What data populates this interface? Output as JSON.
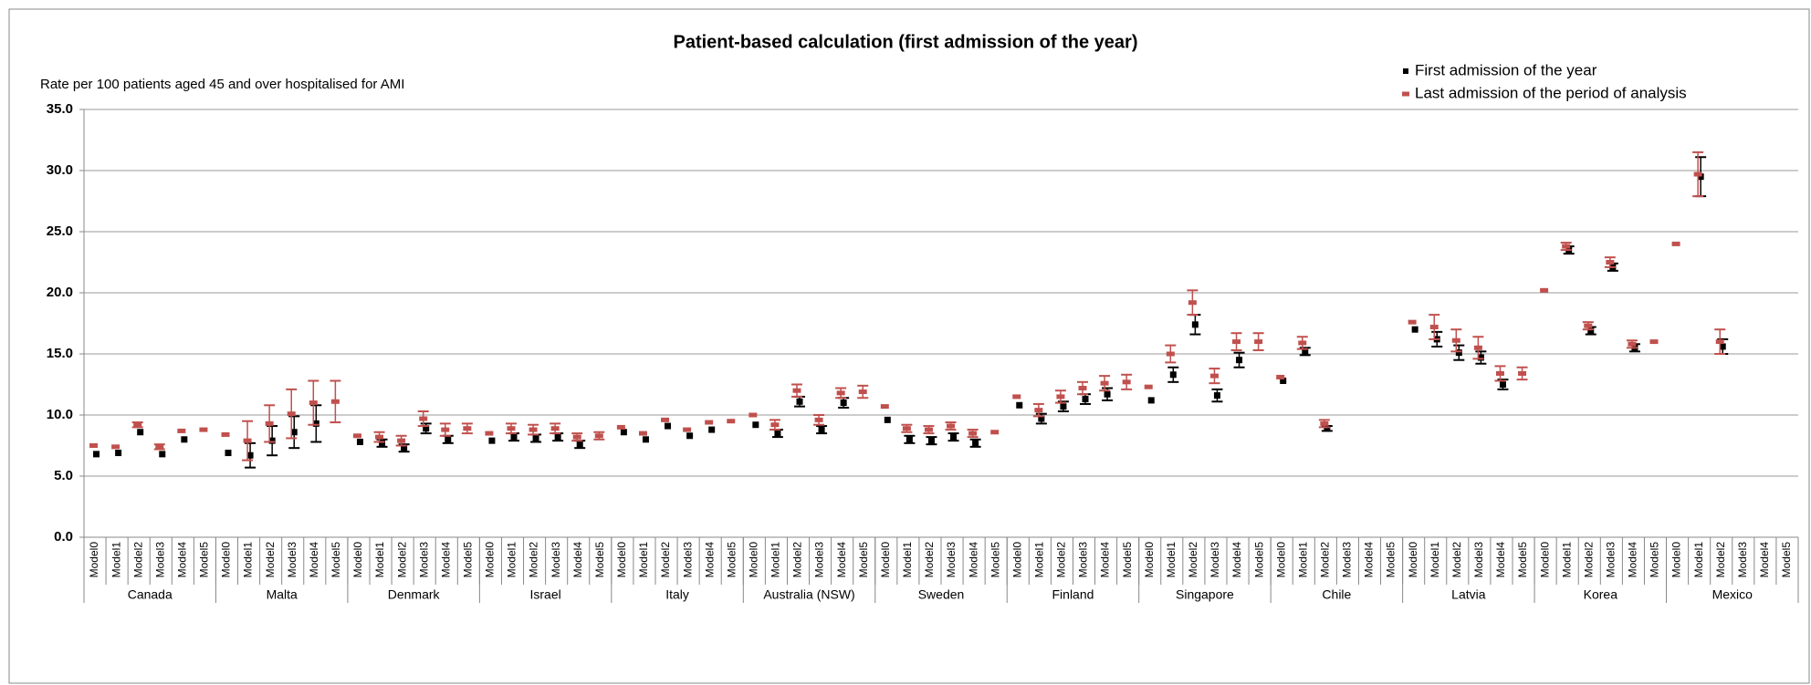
{
  "chart_data": {
    "type": "errorbar",
    "title": "Patient-based calculation (first admission of the year)",
    "ylabel": "Rate per 100 patients aged 45 and over hospitalised for AMI",
    "groups": [
      "Canada",
      "Malta",
      "Denmark",
      "Israel",
      "Italy",
      "Australia (NSW)",
      "Sweden",
      "Finland",
      "Singapore",
      "Chile",
      "Latvia",
      "Korea",
      "Mexico"
    ],
    "categories": [
      "Model0",
      "Model1",
      "Model2",
      "Model3",
      "Model4",
      "Model5",
      "Model0",
      "Model1",
      "Model2",
      "Model3",
      "Model4",
      "Model5",
      "Model0",
      "Model1",
      "Model2",
      "Model3",
      "Model4",
      "Model5",
      "Model0",
      "Model1",
      "Model2",
      "Model3",
      "Model4",
      "Model5",
      "Model0",
      "Model1",
      "Model2",
      "Model3",
      "Model4",
      "Model5",
      "Model0",
      "Model1",
      "Model2",
      "Model3",
      "Model4",
      "Model5",
      "Model0",
      "Model1",
      "Model2",
      "Model3",
      "Model4",
      "Model5",
      "Model0",
      "Model1",
      "Model2",
      "Model3",
      "Model4",
      "Model5",
      "Model0",
      "Model1",
      "Model2",
      "Model3",
      "Model4",
      "Model5",
      "Model0",
      "Model1",
      "Model2",
      "Model3",
      "Model4",
      "Model5",
      "Model0",
      "Model1",
      "Model2",
      "Model3",
      "Model4",
      "Model5",
      "Model0",
      "Model1",
      "Model2",
      "Model3",
      "Model4",
      "Model5",
      "Model0",
      "Model1",
      "Model2",
      "Model3",
      "Model4",
      "Model5"
    ],
    "series": [
      {
        "name": "First admission of the year",
        "color": "#000000",
        "values": [
          6.8,
          6.9,
          8.6,
          6.8,
          8.0,
          null,
          6.9,
          6.7,
          7.9,
          8.6,
          9.3,
          null,
          7.8,
          7.7,
          7.3,
          8.9,
          8.0,
          null,
          7.9,
          8.2,
          8.1,
          8.2,
          7.6,
          null,
          8.6,
          8.0,
          9.1,
          8.3,
          8.8,
          null,
          9.2,
          8.5,
          11.1,
          8.8,
          11.0,
          null,
          9.6,
          8.0,
          7.9,
          8.2,
          7.7,
          null,
          10.8,
          9.7,
          10.7,
          11.3,
          11.7,
          null,
          11.2,
          13.3,
          17.4,
          11.6,
          14.5,
          null,
          12.8,
          15.2,
          8.9,
          null,
          null,
          null,
          17.0,
          16.2,
          15.1,
          14.7,
          12.5,
          null,
          null,
          23.5,
          16.9,
          22.1,
          15.5,
          null,
          null,
          29.5,
          15.6,
          null,
          null,
          null
        ],
        "errors": [
          null,
          null,
          null,
          null,
          null,
          null,
          null,
          1.0,
          1.2,
          1.3,
          1.5,
          null,
          null,
          0.3,
          0.3,
          0.4,
          0.3,
          null,
          null,
          0.3,
          0.3,
          0.3,
          0.3,
          null,
          null,
          null,
          null,
          null,
          null,
          null,
          null,
          0.3,
          0.4,
          0.3,
          0.4,
          null,
          null,
          0.3,
          0.3,
          0.3,
          0.3,
          null,
          null,
          0.4,
          0.4,
          0.4,
          0.5,
          null,
          null,
          0.6,
          0.8,
          0.5,
          0.6,
          null,
          null,
          0.3,
          0.2,
          null,
          null,
          null,
          null,
          0.6,
          0.6,
          0.5,
          0.4,
          null,
          null,
          0.3,
          0.3,
          0.3,
          0.3,
          null,
          null,
          1.6,
          0.6,
          null,
          null,
          null
        ]
      },
      {
        "name": "Last admission of the period of analysis",
        "color": "#c0504d",
        "values": [
          7.5,
          7.4,
          9.2,
          7.4,
          8.7,
          8.8,
          8.4,
          7.9,
          9.3,
          10.1,
          11.0,
          11.1,
          8.3,
          8.2,
          7.9,
          9.7,
          8.8,
          8.9,
          8.5,
          8.9,
          8.8,
          8.9,
          8.2,
          8.3,
          9.0,
          8.5,
          9.6,
          8.8,
          9.4,
          9.5,
          10.0,
          9.2,
          12.0,
          9.6,
          11.8,
          11.9,
          10.7,
          8.9,
          8.8,
          9.1,
          8.5,
          8.6,
          11.5,
          10.4,
          11.5,
          12.2,
          12.6,
          12.7,
          12.3,
          15.0,
          19.2,
          13.2,
          16.0,
          16.0,
          13.1,
          15.9,
          9.3,
          null,
          null,
          null,
          17.6,
          17.2,
          16.1,
          15.5,
          13.4,
          13.4,
          20.2,
          23.8,
          17.3,
          22.5,
          15.8,
          16.0,
          24.0,
          29.7,
          16.0,
          null,
          null,
          null
        ],
        "errors": [
          null,
          null,
          0.2,
          0.2,
          null,
          null,
          null,
          1.6,
          1.5,
          2.0,
          1.8,
          1.7,
          null,
          0.4,
          0.4,
          0.6,
          0.5,
          0.4,
          null,
          0.4,
          0.4,
          0.4,
          0.3,
          0.3,
          null,
          null,
          null,
          null,
          null,
          null,
          null,
          0.4,
          0.5,
          0.4,
          0.4,
          0.5,
          null,
          0.3,
          0.3,
          0.3,
          0.3,
          null,
          null,
          0.5,
          0.5,
          0.5,
          0.6,
          0.6,
          null,
          0.7,
          1.0,
          0.6,
          0.7,
          0.7,
          null,
          0.5,
          0.3,
          null,
          null,
          null,
          null,
          1.0,
          0.9,
          0.9,
          0.6,
          0.5,
          null,
          0.3,
          0.3,
          0.4,
          0.3,
          null,
          null,
          1.8,
          1.0,
          null,
          null,
          null
        ]
      }
    ],
    "ylim": [
      0,
      35
    ],
    "yticks": [
      {
        "value": 0,
        "label": "0.0"
      },
      {
        "value": 5,
        "label": "5.0"
      },
      {
        "value": 10,
        "label": "10.0"
      },
      {
        "value": 15,
        "label": "15.0"
      },
      {
        "value": 20,
        "label": "20.0"
      },
      {
        "value": 25,
        "label": "25.0"
      },
      {
        "value": 30,
        "label": "30.0"
      },
      {
        "value": 35,
        "label": "35.0"
      }
    ],
    "grid": true,
    "legend": "top-right"
  }
}
